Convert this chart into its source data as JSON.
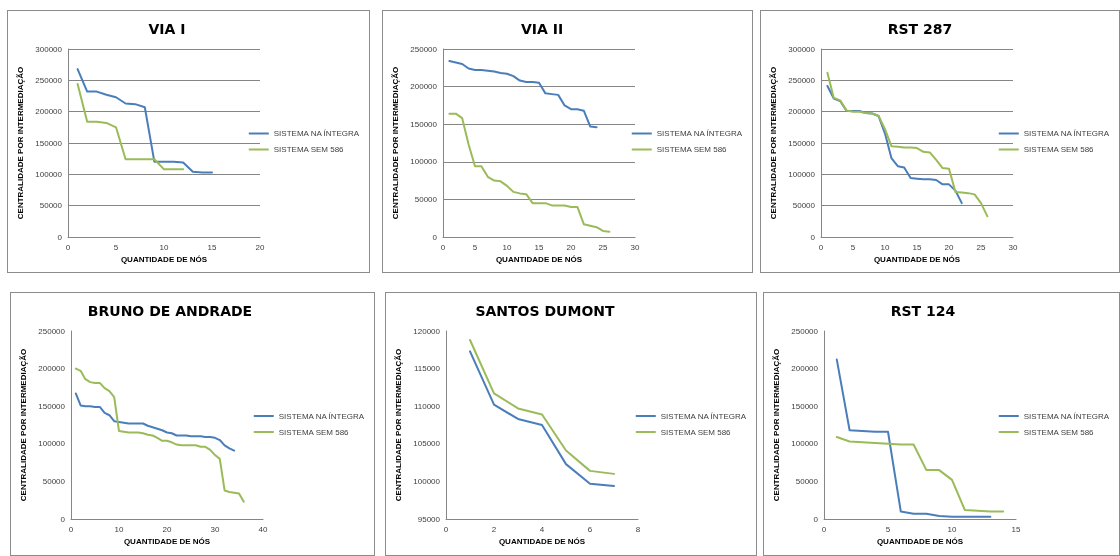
{
  "chart_data": [
    {
      "type": "line",
      "title": "VIA I",
      "xlabel": "QUANTIDADE DE NÓS",
      "ylabel": "CENTRALIDADE POR INTERMEDIAÇÃO",
      "xlim": [
        0,
        20
      ],
      "xticks": [
        0,
        5,
        10,
        15,
        20
      ],
      "ylim": [
        0,
        300000
      ],
      "yticks": [
        0,
        50000,
        100000,
        150000,
        200000,
        250000,
        300000
      ],
      "grid": "y",
      "legend": "right",
      "series": [
        {
          "name": "SISTEMA NA ÍNTEGRA",
          "color": "#4a7ebb",
          "x": [
            1,
            2,
            3,
            4,
            5,
            6,
            7,
            8,
            9,
            10,
            11,
            12,
            13,
            14,
            15
          ],
          "values": [
            268000,
            232000,
            232000,
            227000,
            223000,
            213000,
            212000,
            207000,
            120000,
            120000,
            120000,
            119000,
            104000,
            103000,
            103000
          ]
        },
        {
          "name": "SISTEMA SEM 586",
          "color": "#9bbb59",
          "x": [
            1,
            2,
            3,
            4,
            5,
            6,
            7,
            8,
            9,
            10,
            11,
            12
          ],
          "values": [
            244000,
            184000,
            184000,
            182000,
            175000,
            124000,
            124000,
            124000,
            124000,
            108000,
            108000,
            108000
          ]
        }
      ]
    },
    {
      "type": "line",
      "title": "VIA II",
      "xlabel": "QUANTIDADE DE NÓS",
      "ylabel": "CENTRALIDADE POR INTERMEDIAÇÃO",
      "xlim": [
        0,
        30
      ],
      "xticks": [
        0,
        5,
        10,
        15,
        20,
        25,
        30
      ],
      "ylim": [
        0,
        250000
      ],
      "yticks": [
        0,
        50000,
        100000,
        150000,
        200000,
        250000
      ],
      "grid": "y",
      "legend": "right",
      "series": [
        {
          "name": "SISTEMA NA ÍNTEGRA",
          "color": "#4a7ebb",
          "x": [
            1,
            2,
            3,
            4,
            5,
            6,
            7,
            8,
            9,
            10,
            11,
            12,
            13,
            14,
            15,
            16,
            17,
            18,
            19,
            20,
            21,
            22,
            23,
            24
          ],
          "values": [
            234000,
            232000,
            230000,
            224000,
            222000,
            222000,
            221000,
            220000,
            218000,
            217000,
            214000,
            208000,
            206000,
            206000,
            205000,
            191000,
            190000,
            189000,
            175000,
            170000,
            170000,
            168000,
            147000,
            146000
          ]
        },
        {
          "name": "SISTEMA SEM 586",
          "color": "#9bbb59",
          "x": [
            1,
            2,
            3,
            4,
            5,
            6,
            7,
            8,
            9,
            10,
            11,
            12,
            13,
            14,
            15,
            16,
            17,
            18,
            19,
            20,
            21,
            22,
            23,
            24,
            25,
            26
          ],
          "values": [
            164000,
            164000,
            158000,
            123000,
            94000,
            94000,
            80000,
            75000,
            74000,
            68000,
            60000,
            58000,
            57000,
            45000,
            45000,
            45000,
            42000,
            42000,
            42000,
            40000,
            40000,
            17000,
            15000,
            13000,
            8000,
            7000
          ]
        }
      ]
    },
    {
      "type": "line",
      "title": "RST 287",
      "xlabel": "QUANTIDADE DE NÓS",
      "ylabel": "CENTRALIDADE POR INTERMEDIAÇÃO",
      "xlim": [
        0,
        30
      ],
      "xticks": [
        0,
        5,
        10,
        15,
        20,
        25,
        30
      ],
      "ylim": [
        0,
        300000
      ],
      "yticks": [
        0,
        50000,
        100000,
        150000,
        200000,
        250000,
        300000
      ],
      "grid": "y",
      "legend": "right",
      "series": [
        {
          "name": "SISTEMA NA ÍNTEGRA",
          "color": "#4a7ebb",
          "x": [
            1,
            2,
            3,
            4,
            5,
            6,
            7,
            8,
            9,
            10,
            11,
            12,
            13,
            14,
            15,
            16,
            17,
            18,
            19,
            20,
            21,
            22
          ],
          "values": [
            241000,
            221000,
            217000,
            201000,
            201000,
            201000,
            198000,
            197000,
            193000,
            165000,
            126000,
            113000,
            111000,
            94000,
            93000,
            92000,
            92000,
            91000,
            84000,
            84000,
            74000,
            54000
          ]
        },
        {
          "name": "SISTEMA SEM 586",
          "color": "#9bbb59",
          "x": [
            1,
            2,
            3,
            4,
            5,
            6,
            7,
            8,
            9,
            10,
            11,
            12,
            13,
            14,
            15,
            16,
            17,
            18,
            19,
            20,
            21,
            22,
            23,
            24,
            25,
            26
          ],
          "values": [
            262000,
            222000,
            218000,
            202000,
            200000,
            200000,
            198000,
            197000,
            193000,
            172000,
            145000,
            144000,
            143000,
            143000,
            142000,
            136000,
            135000,
            123000,
            110000,
            109000,
            72000,
            71000,
            70000,
            68000,
            54000,
            33000
          ]
        }
      ]
    },
    {
      "type": "line",
      "title": "BRUNO DE ANDRADE",
      "xlabel": "QUANTIDADE DE NÓS",
      "ylabel": "CENTRALIDADE POR INTERMEDIAÇÃO",
      "xlim": [
        0,
        40
      ],
      "xticks": [
        0,
        10,
        20,
        30,
        40
      ],
      "ylim": [
        0,
        250000
      ],
      "yticks": [
        0,
        50000,
        100000,
        150000,
        200000,
        250000
      ],
      "legend": "right",
      "series": [
        {
          "name": "SISTEMA NA ÍNTEGRA",
          "color": "#4a7ebb",
          "x": [
            1,
            2,
            3,
            4,
            5,
            6,
            7,
            8,
            9,
            10,
            11,
            12,
            13,
            14,
            15,
            16,
            17,
            18,
            19,
            20,
            21,
            22,
            23,
            24,
            25,
            26,
            27,
            28,
            29,
            30,
            31,
            32,
            33,
            34
          ],
          "values": [
            167000,
            151000,
            150000,
            150000,
            149000,
            149000,
            141000,
            138000,
            130000,
            129000,
            128000,
            127000,
            127000,
            127000,
            127000,
            124000,
            122000,
            120000,
            118000,
            115000,
            114000,
            111000,
            111000,
            111000,
            110000,
            110000,
            110000,
            109000,
            109000,
            108000,
            105000,
            98000,
            94000,
            91000
          ]
        },
        {
          "name": "SISTEMA SEM 586",
          "color": "#9bbb59",
          "x": [
            1,
            2,
            3,
            4,
            5,
            6,
            7,
            8,
            9,
            10,
            11,
            12,
            13,
            14,
            15,
            16,
            17,
            18,
            19,
            20,
            21,
            22,
            23,
            24,
            25,
            26,
            27,
            28,
            29,
            30,
            31,
            32,
            33,
            34,
            35,
            36
          ],
          "values": [
            200000,
            197000,
            186000,
            182000,
            181000,
            181000,
            174000,
            170000,
            162000,
            117000,
            116000,
            115000,
            115000,
            115000,
            114000,
            112000,
            111000,
            108000,
            104000,
            104000,
            102000,
            99000,
            98000,
            98000,
            98000,
            98000,
            96000,
            96000,
            92000,
            85000,
            80000,
            38000,
            36000,
            35000,
            34000,
            23000
          ]
        }
      ]
    },
    {
      "type": "line",
      "title": "SANTOS DUMONT",
      "xlabel": "QUANTIDADE DE NÓS",
      "ylabel": "CENTRALIDADE POR INTERMEDIAÇÃO",
      "xlim": [
        0,
        8
      ],
      "xticks": [
        0,
        2,
        4,
        6,
        8
      ],
      "ylim": [
        95000,
        120000
      ],
      "yticks": [
        95000,
        100000,
        105000,
        110000,
        115000,
        120000
      ],
      "legend": "right",
      "series": [
        {
          "name": "SISTEMA NA ÍNTEGRA",
          "color": "#4a7ebb",
          "x": [
            1,
            2,
            3,
            4,
            5,
            6,
            7
          ],
          "values": [
            117300,
            110200,
            108300,
            107500,
            102300,
            99700,
            99400
          ]
        },
        {
          "name": "SISTEMA SEM 586",
          "color": "#9bbb59",
          "x": [
            1,
            2,
            3,
            4,
            5,
            6,
            7
          ],
          "values": [
            118800,
            111700,
            109700,
            108900,
            104100,
            101400,
            101000
          ]
        }
      ]
    },
    {
      "type": "line",
      "title": "RST 124",
      "xlabel": "QUANTIDADE DE NÓS",
      "ylabel": "CENTRALIDADE POR INTERMEDIAÇÃO",
      "xlim": [
        0,
        15
      ],
      "xticks": [
        0,
        5,
        10,
        15
      ],
      "ylim": [
        0,
        250000
      ],
      "yticks": [
        0,
        50000,
        100000,
        150000,
        200000,
        250000
      ],
      "legend": "right",
      "series": [
        {
          "name": "SISTEMA NA ÍNTEGRA",
          "color": "#4a7ebb",
          "x": [
            1,
            2,
            3,
            4,
            5,
            6,
            7,
            8,
            9,
            10,
            11,
            12,
            13
          ],
          "values": [
            212000,
            118000,
            117000,
            116000,
            116000,
            10000,
            7000,
            7000,
            4000,
            3000,
            3000,
            3000,
            3000
          ]
        },
        {
          "name": "SISTEMA SEM 586",
          "color": "#9bbb59",
          "x": [
            1,
            2,
            3,
            4,
            5,
            6,
            7,
            8,
            9,
            10,
            11,
            12,
            13,
            14
          ],
          "values": [
            109000,
            103000,
            102000,
            101000,
            100000,
            99000,
            99000,
            65000,
            65000,
            52000,
            12000,
            11000,
            10000,
            10000
          ]
        }
      ]
    }
  ]
}
